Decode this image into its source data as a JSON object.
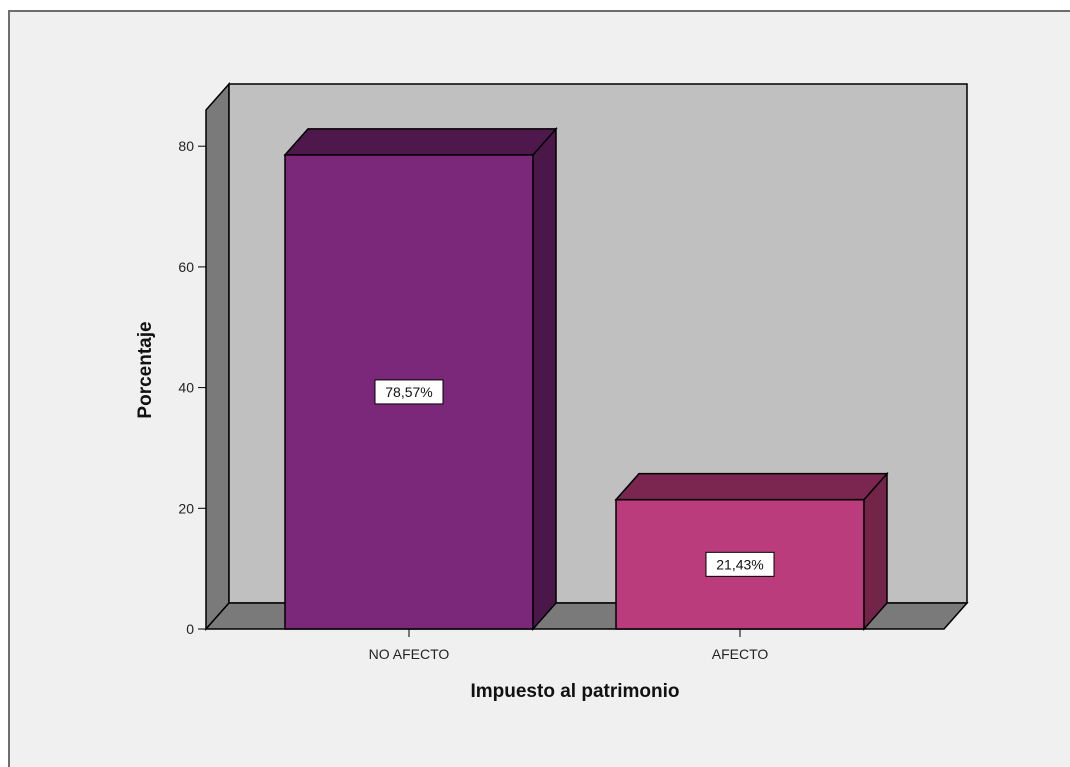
{
  "chart_data": {
    "type": "bar",
    "style": "3d",
    "title": "",
    "xlabel": "Impuesto al patrimonio",
    "ylabel": "Porcentaje",
    "categories": [
      "NO AFECTO",
      "AFECTO"
    ],
    "values": [
      78.57,
      21.43
    ],
    "data_labels": [
      "78,57%",
      "21,43%"
    ],
    "ylim": [
      0,
      86
    ],
    "yticks": [
      0,
      20,
      40,
      60,
      80
    ],
    "grid": false,
    "colors": {
      "background": "#f0f0f0",
      "plot_back_wall": "#c0c0c0",
      "plot_side_wall": "#7a7a7a",
      "plot_floor": "#7a7a7a",
      "bars": [
        "#7b277a",
        "#bb3c7d"
      ],
      "bars_side": [
        "#4a1748",
        "#722449"
      ],
      "bars_top": [
        "#4e184c",
        "#7a2650"
      ]
    }
  }
}
